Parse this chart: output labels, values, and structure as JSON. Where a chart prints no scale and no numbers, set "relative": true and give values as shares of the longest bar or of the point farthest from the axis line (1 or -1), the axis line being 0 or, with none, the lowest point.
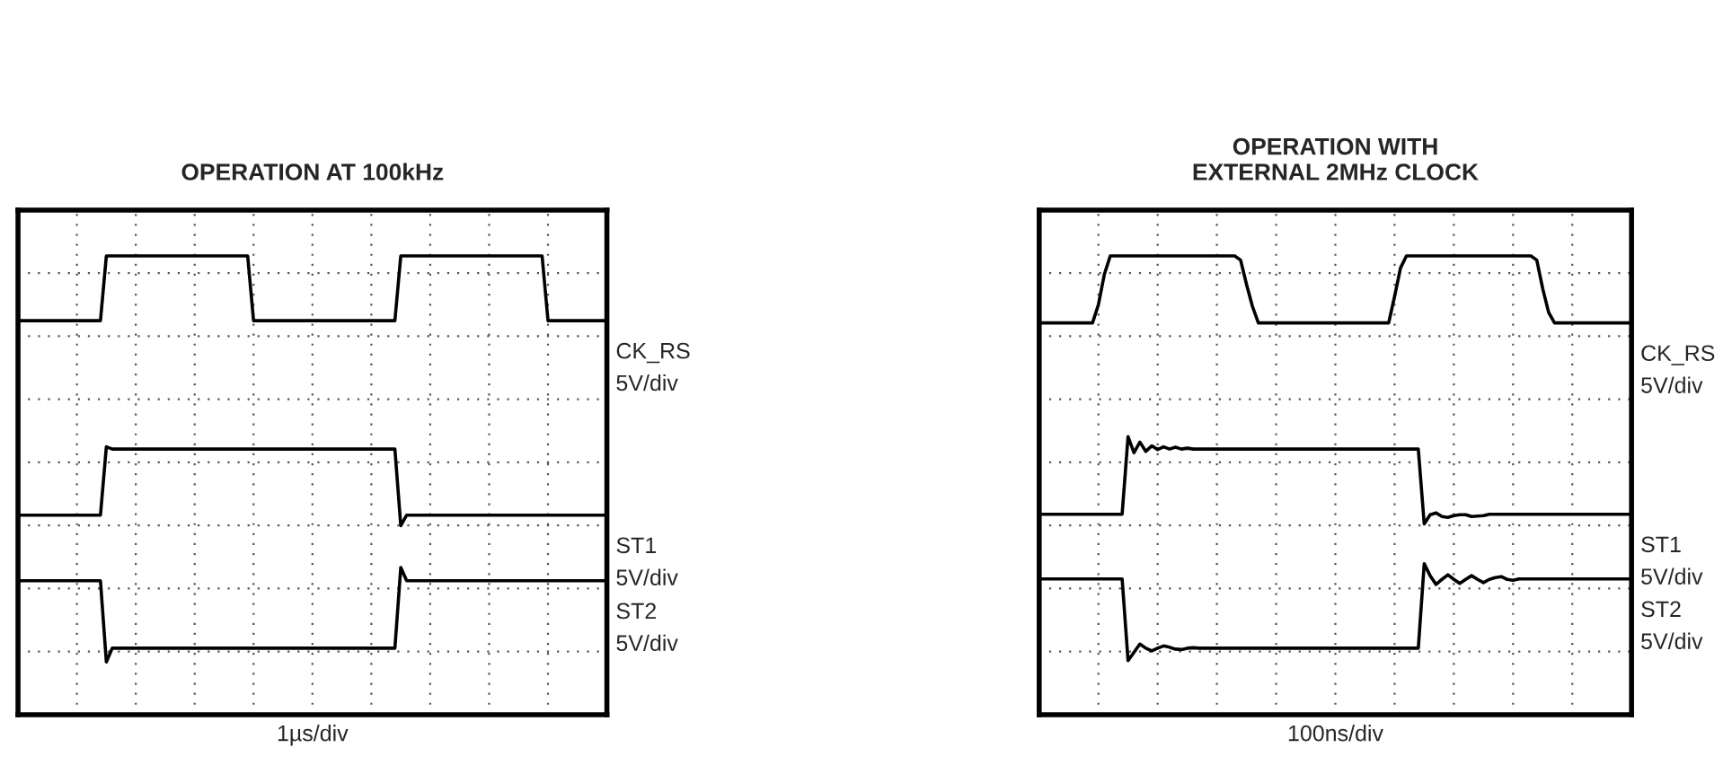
{
  "chart_data": [
    {
      "type": "line",
      "title": "OPERATION AT 100kHz",
      "xlabel": "1µs/div",
      "relative": true,
      "grid": true,
      "tick_labels": false,
      "legend": false,
      "marker": "none",
      "line_style": "solid",
      "categories": [
        null,
        null,
        null,
        null,
        null,
        null,
        null,
        null,
        null,
        null,
        null,
        null,
        null,
        null,
        null,
        null,
        null,
        null,
        null,
        null,
        null,
        null,
        null,
        null,
        null,
        null,
        null,
        null,
        null,
        null,
        null,
        null,
        null,
        null,
        null,
        null,
        null,
        null,
        null,
        null,
        null,
        null,
        null,
        null,
        null,
        null,
        null,
        null,
        null,
        null,
        null,
        null,
        null,
        null,
        null,
        null,
        null,
        null,
        null,
        null,
        null,
        null,
        null,
        null,
        null,
        null,
        null,
        null,
        null,
        null,
        null,
        null,
        null,
        null,
        null,
        null,
        null,
        null,
        null,
        null,
        null,
        null,
        null,
        null,
        null,
        null,
        null,
        null,
        null,
        null,
        null,
        null,
        null,
        null,
        null,
        null,
        null,
        null,
        null,
        null,
        null
      ],
      "annotations": [
        "5V/div",
        "5V/div",
        "5V/div"
      ],
      "series": [
        {
          "name": "CK_RS",
          "color": "#000000",
          "values": [
            0.859,
            0.859,
            0.859,
            0.859,
            0.859,
            0.859,
            0.859,
            0.859,
            0.859,
            0.859,
            0.859,
            0.859,
            0.859,
            0.859,
            0.859,
            1,
            1,
            1,
            1,
            1,
            1,
            1,
            1,
            1,
            1,
            1,
            1,
            1,
            1,
            1,
            1,
            1,
            1,
            1,
            1,
            1,
            1,
            1,
            1,
            1,
            0.859,
            0.859,
            0.859,
            0.859,
            0.859,
            0.859,
            0.859,
            0.859,
            0.859,
            0.859,
            0.859,
            0.859,
            0.859,
            0.859,
            0.859,
            0.859,
            0.859,
            0.859,
            0.859,
            0.859,
            0.859,
            0.859,
            0.859,
            0.859,
            0.859,
            1,
            1,
            1,
            1,
            1,
            1,
            1,
            1,
            1,
            1,
            1,
            1,
            1,
            1,
            1,
            1,
            1,
            1,
            1,
            1,
            1,
            1,
            1,
            1,
            1,
            0.859,
            0.859,
            0.859,
            0.859,
            0.859,
            0.859,
            0.859,
            0.859,
            0.859,
            0.859,
            0.859
          ]
        },
        {
          "name": "ST1",
          "color": "#000000",
          "values": [
            0.435,
            0.435,
            0.435,
            0.435,
            0.435,
            0.435,
            0.435,
            0.435,
            0.435,
            0.435,
            0.435,
            0.435,
            0.435,
            0.435,
            0.435,
            0.584,
            0.579,
            0.579,
            0.579,
            0.579,
            0.579,
            0.579,
            0.579,
            0.579,
            0.579,
            0.579,
            0.579,
            0.579,
            0.579,
            0.579,
            0.579,
            0.579,
            0.579,
            0.579,
            0.579,
            0.579,
            0.579,
            0.579,
            0.579,
            0.579,
            0.579,
            0.579,
            0.579,
            0.579,
            0.579,
            0.579,
            0.579,
            0.579,
            0.579,
            0.579,
            0.579,
            0.579,
            0.579,
            0.579,
            0.579,
            0.579,
            0.579,
            0.579,
            0.579,
            0.579,
            0.579,
            0.579,
            0.579,
            0.579,
            0.579,
            0.412,
            0.435,
            0.435,
            0.435,
            0.435,
            0.435,
            0.435,
            0.435,
            0.435,
            0.435,
            0.435,
            0.435,
            0.435,
            0.435,
            0.435,
            0.435,
            0.435,
            0.435,
            0.435,
            0.435,
            0.435,
            0.435,
            0.435,
            0.435,
            0.435,
            0.435,
            0.435,
            0.435,
            0.435,
            0.435,
            0.435,
            0.435,
            0.435,
            0.435,
            0.435,
            0.435
          ]
        },
        {
          "name": "ST2",
          "color": "#000000",
          "values": [
            0.292,
            0.292,
            0.292,
            0.292,
            0.292,
            0.292,
            0.292,
            0.292,
            0.292,
            0.292,
            0.292,
            0.292,
            0.292,
            0.292,
            0.292,
            0.115,
            0.145,
            0.145,
            0.145,
            0.145,
            0.145,
            0.145,
            0.145,
            0.145,
            0.145,
            0.145,
            0.145,
            0.145,
            0.145,
            0.145,
            0.145,
            0.145,
            0.145,
            0.145,
            0.145,
            0.145,
            0.145,
            0.145,
            0.145,
            0.145,
            0.145,
            0.145,
            0.145,
            0.145,
            0.145,
            0.145,
            0.145,
            0.145,
            0.145,
            0.145,
            0.145,
            0.145,
            0.145,
            0.145,
            0.145,
            0.145,
            0.145,
            0.145,
            0.145,
            0.145,
            0.145,
            0.145,
            0.145,
            0.145,
            0.145,
            0.321,
            0.292,
            0.292,
            0.292,
            0.292,
            0.292,
            0.292,
            0.292,
            0.292,
            0.292,
            0.292,
            0.292,
            0.292,
            0.292,
            0.292,
            0.292,
            0.292,
            0.292,
            0.292,
            0.292,
            0.292,
            0.292,
            0.292,
            0.292,
            0.292,
            0.292,
            0.292,
            0.292,
            0.292,
            0.292,
            0.292,
            0.292,
            0.292,
            0.292,
            0.292,
            0.292
          ]
        }
      ]
    },
    {
      "type": "line",
      "title": "OPERATION WITH\nEXTERNAL 2MHz CLOCK",
      "xlabel": "100ns/div",
      "relative": true,
      "grid": true,
      "tick_labels": false,
      "legend": false,
      "marker": "none",
      "line_style": "solid",
      "categories": [
        null,
        null,
        null,
        null,
        null,
        null,
        null,
        null,
        null,
        null,
        null,
        null,
        null,
        null,
        null,
        null,
        null,
        null,
        null,
        null,
        null,
        null,
        null,
        null,
        null,
        null,
        null,
        null,
        null,
        null,
        null,
        null,
        null,
        null,
        null,
        null,
        null,
        null,
        null,
        null,
        null,
        null,
        null,
        null,
        null,
        null,
        null,
        null,
        null,
        null,
        null,
        null,
        null,
        null,
        null,
        null,
        null,
        null,
        null,
        null,
        null,
        null,
        null,
        null,
        null,
        null,
        null,
        null,
        null,
        null,
        null,
        null,
        null,
        null,
        null,
        null,
        null,
        null,
        null,
        null,
        null,
        null,
        null,
        null,
        null,
        null,
        null,
        null,
        null,
        null,
        null,
        null,
        null,
        null,
        null,
        null,
        null,
        null,
        null,
        null,
        null
      ],
      "annotations": [
        "5V/div",
        "5V/div",
        "5V/div"
      ],
      "series": [
        {
          "name": "CK_RS",
          "color": "#000000",
          "values": [
            0.854,
            0.854,
            0.854,
            0.854,
            0.854,
            0.854,
            0.854,
            0.854,
            0.854,
            0.854,
            0.894,
            0.96,
            1,
            1,
            1,
            1,
            1,
            1,
            1,
            1,
            1,
            1,
            1,
            1,
            1,
            1,
            1,
            1,
            1,
            1,
            1,
            1,
            1,
            1,
            0.991,
            0.938,
            0.89,
            0.854,
            0.854,
            0.854,
            0.854,
            0.854,
            0.854,
            0.854,
            0.854,
            0.854,
            0.854,
            0.854,
            0.854,
            0.854,
            0.854,
            0.854,
            0.854,
            0.854,
            0.854,
            0.854,
            0.854,
            0.854,
            0.854,
            0.854,
            0.912,
            0.974,
            1,
            1,
            1,
            1,
            1,
            1,
            1,
            1,
            1,
            1,
            1,
            1,
            1,
            1,
            1,
            1,
            1,
            1,
            1,
            1,
            1,
            1,
            0.991,
            0.929,
            0.877,
            0.854,
            0.854,
            0.854,
            0.854,
            0.854,
            0.854,
            0.854,
            0.854,
            0.854,
            0.854,
            0.854,
            0.854,
            0.854,
            0.854
          ]
        },
        {
          "name": "ST1",
          "color": "#000000",
          "values": [
            0.437,
            0.437,
            0.437,
            0.437,
            0.437,
            0.437,
            0.437,
            0.437,
            0.437,
            0.437,
            0.437,
            0.437,
            0.437,
            0.437,
            0.437,
            0.606,
            0.571,
            0.594,
            0.574,
            0.586,
            0.578,
            0.584,
            0.579,
            0.583,
            0.579,
            0.581,
            0.579,
            0.579,
            0.579,
            0.579,
            0.579,
            0.579,
            0.579,
            0.579,
            0.579,
            0.579,
            0.579,
            0.579,
            0.579,
            0.579,
            0.579,
            0.579,
            0.579,
            0.579,
            0.579,
            0.579,
            0.579,
            0.579,
            0.579,
            0.579,
            0.579,
            0.579,
            0.579,
            0.579,
            0.579,
            0.579,
            0.579,
            0.579,
            0.579,
            0.579,
            0.579,
            0.579,
            0.579,
            0.579,
            0.579,
            0.416,
            0.436,
            0.44,
            0.432,
            0.43,
            0.434,
            0.436,
            0.436,
            0.432,
            0.433,
            0.434,
            0.437,
            0.437,
            0.437,
            0.437,
            0.437,
            0.437,
            0.437,
            0.437,
            0.437,
            0.437,
            0.437,
            0.437,
            0.437,
            0.437,
            0.437,
            0.437,
            0.437,
            0.437,
            0.437,
            0.437,
            0.437,
            0.437,
            0.437,
            0.437,
            0.437
          ]
        },
        {
          "name": "ST2",
          "color": "#000000",
          "values": [
            0.296,
            0.296,
            0.296,
            0.296,
            0.296,
            0.296,
            0.296,
            0.296,
            0.296,
            0.296,
            0.296,
            0.296,
            0.296,
            0.296,
            0.296,
            0.118,
            0.136,
            0.154,
            0.145,
            0.139,
            0.145,
            0.15,
            0.147,
            0.143,
            0.142,
            0.145,
            0.146,
            0.145,
            0.145,
            0.145,
            0.145,
            0.145,
            0.145,
            0.145,
            0.145,
            0.145,
            0.145,
            0.145,
            0.145,
            0.145,
            0.145,
            0.145,
            0.145,
            0.145,
            0.145,
            0.145,
            0.145,
            0.145,
            0.145,
            0.145,
            0.145,
            0.145,
            0.145,
            0.145,
            0.145,
            0.145,
            0.145,
            0.145,
            0.145,
            0.145,
            0.145,
            0.145,
            0.145,
            0.145,
            0.145,
            0.329,
            0.303,
            0.284,
            0.295,
            0.305,
            0.295,
            0.286,
            0.295,
            0.303,
            0.295,
            0.288,
            0.295,
            0.299,
            0.301,
            0.295,
            0.293,
            0.296,
            0.296,
            0.296,
            0.296,
            0.296,
            0.296,
            0.296,
            0.296,
            0.296,
            0.296,
            0.296,
            0.296,
            0.296,
            0.296,
            0.296,
            0.296,
            0.296,
            0.296,
            0.296,
            0.296
          ]
        }
      ]
    }
  ]
}
